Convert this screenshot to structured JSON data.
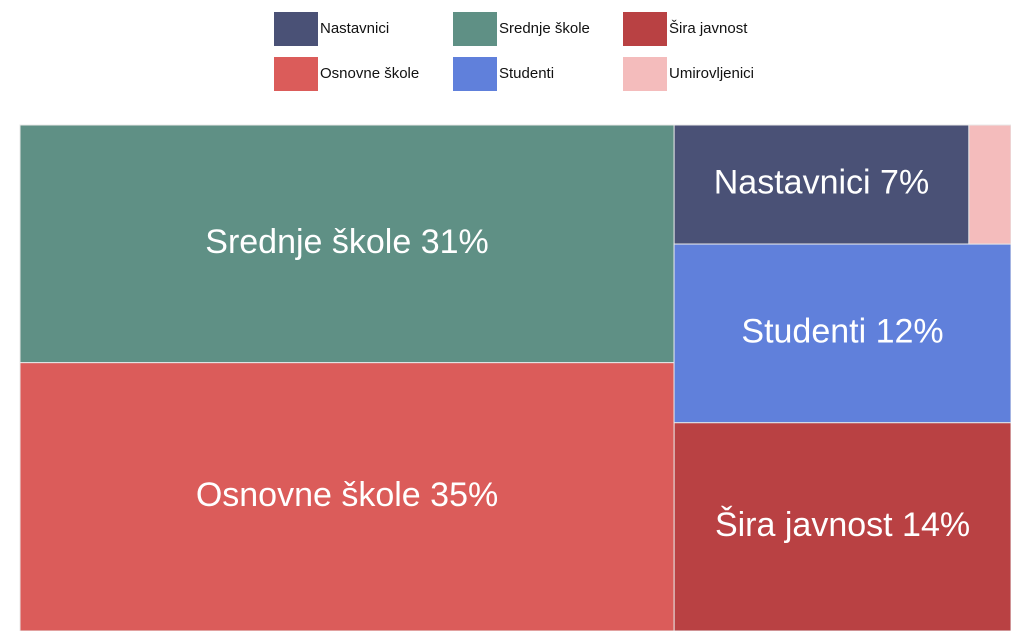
{
  "chart_data": {
    "type": "treemap",
    "categories": [
      "Nastavnici",
      "Srednje škole",
      "Šira javnost",
      "Osnovne škole",
      "Studenti",
      "Umirovljenici"
    ],
    "values": [
      7,
      31,
      14,
      35,
      12,
      1
    ],
    "value_labels": [
      "Nastavnici 7%",
      "Srednje škole 31%",
      "Šira javnost 14%",
      "Osnovne škole 35%",
      "Studenti 12%",
      null
    ],
    "colors": [
      "#4a5176",
      "#5f9085",
      "#b94143",
      "#db5c5a",
      "#6080db",
      "#f4bcbc"
    ],
    "legend": "top"
  }
}
